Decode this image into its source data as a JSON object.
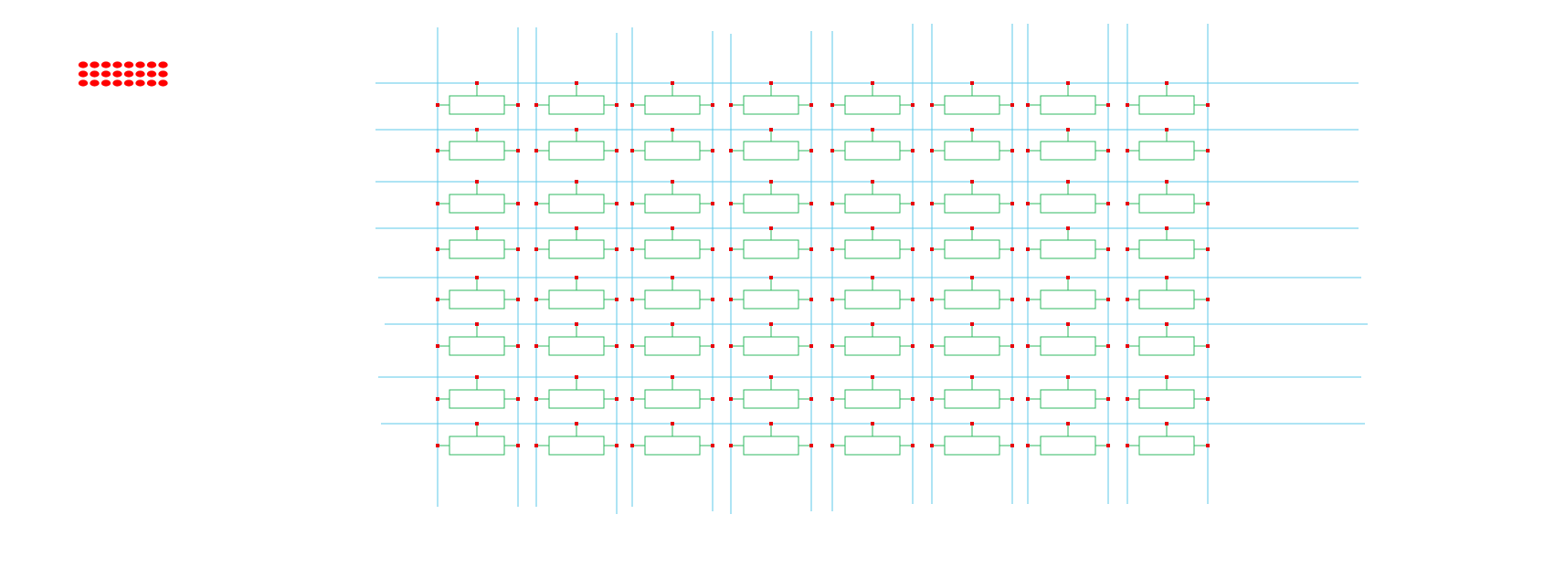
{
  "diagram": {
    "type": "resistor-crossbar-array",
    "rows": 8,
    "columns": 8,
    "legend_dots": {
      "rows": 3,
      "columns": 8
    },
    "colors": {
      "background": "#ffffff",
      "wire": "#5cc8ea",
      "resistor": "#2fb860",
      "pin": "#e8000b",
      "legend_dot": "#ff0000"
    },
    "text": []
  }
}
